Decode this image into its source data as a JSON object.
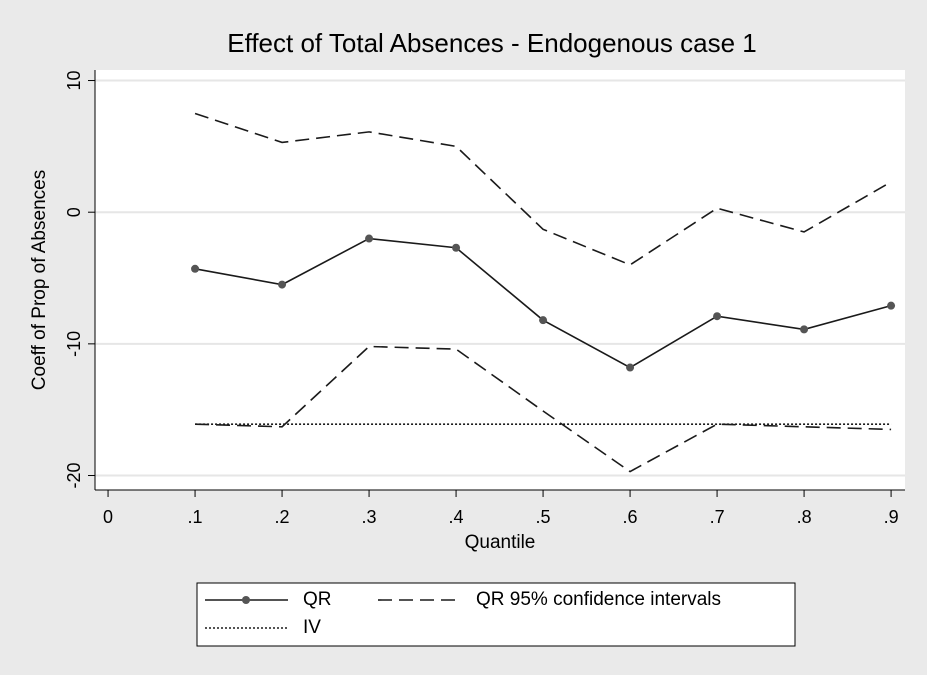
{
  "chart_data": {
    "type": "line",
    "title": "Effect of Total Absences - Endogenous case 1",
    "x_label": "Quantile",
    "y_label": "Coeff of Prop of Absences",
    "x": [
      0.1,
      0.2,
      0.3,
      0.4,
      0.5,
      0.6,
      0.7,
      0.8,
      0.9
    ],
    "series": [
      {
        "name": "QR",
        "color": "#1a1a1a",
        "style": "solid",
        "markers": true,
        "values": [
          -4.3,
          -5.5,
          -2.0,
          -2.7,
          -8.2,
          -11.8,
          -7.9,
          -8.9,
          -7.1
        ]
      },
      {
        "name": "QR 95% confidence intervals",
        "color": "#1a1a1a",
        "style": "dashed",
        "values": [
          7.5,
          5.3,
          6.1,
          5.0,
          -1.3,
          -4.0,
          0.3,
          -1.5,
          2.3
        ],
        "lower": [
          -16.1,
          -16.3,
          -10.2,
          -10.4,
          -15.1,
          -19.7,
          -16.1,
          -16.3,
          -16.5
        ]
      },
      {
        "name": "IV",
        "color": "#1a1a1a",
        "style": "dotted",
        "values": [
          -16.1,
          -16.1,
          -16.1,
          -16.1,
          -16.1,
          -16.1,
          -16.1,
          -16.1,
          -16.1
        ]
      }
    ],
    "xlim": [
      -0.015,
      0.916
    ],
    "ylim": [
      -21.1,
      10.8
    ],
    "xticks": [
      0,
      {
        "value": 0.1,
        "label": ".1"
      },
      {
        "value": 0.2,
        "label": ".2"
      },
      {
        "value": 0.3,
        "label": ".3"
      },
      {
        "value": 0.4,
        "label": ".4"
      },
      {
        "value": 0.5,
        "label": ".5"
      },
      {
        "value": 0.6,
        "label": ".6"
      },
      {
        "value": 0.7,
        "label": ".7"
      },
      {
        "value": 0.8,
        "label": ".8"
      },
      {
        "value": 0.9,
        "label": ".9"
      }
    ],
    "yticks": [
      -20,
      -10,
      0,
      10
    ],
    "grid": true
  }
}
